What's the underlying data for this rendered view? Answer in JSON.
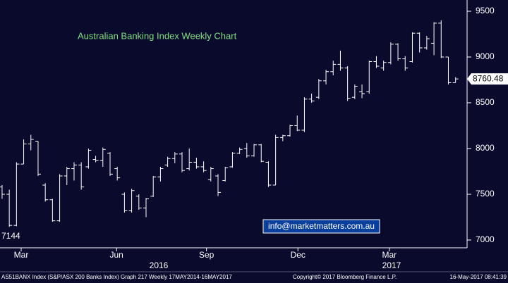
{
  "chart_data": {
    "type": "ohlc",
    "title": "Australian Banking Index Weekly Chart",
    "color": "#ffffff",
    "open": [
      7580,
      7500,
      7160,
      7830,
      8050,
      8080,
      7600,
      7440,
      7210,
      7700,
      7780,
      7820,
      7800,
      7880,
      7870,
      7950,
      7780,
      7500,
      7320,
      7480,
      7350,
      7480,
      7690,
      7820,
      7890,
      7940,
      7780,
      7850,
      7800,
      7660,
      7700,
      7650,
      7800,
      7950,
      8000,
      7920,
      8040,
      7850,
      7600,
      8120,
      8140,
      8250,
      8200,
      8540,
      8560,
      8740,
      8840,
      8920,
      8880,
      8560,
      8620,
      8620,
      8950,
      8880,
      8940,
      9140,
      8980,
      8950,
      9260,
      9100,
      9150,
      9370,
      9000,
      8720
    ],
    "high": [
      7600,
      7550,
      7850,
      8100,
      8150,
      8080,
      7620,
      7450,
      7720,
      7800,
      7850,
      7850,
      8000,
      7920,
      8010,
      7960,
      7800,
      7520,
      7560,
      7500,
      7460,
      7700,
      7800,
      7910,
      7960,
      7960,
      8000,
      7900,
      7860,
      7800,
      7720,
      7800,
      7960,
      8010,
      8060,
      8050,
      8050,
      7860,
      8150,
      8150,
      8260,
      8360,
      8560,
      8600,
      8760,
      8860,
      8960,
      9070,
      8900,
      8700,
      8700,
      8960,
      9010,
      8960,
      9160,
      9150,
      9010,
      9270,
      9270,
      9230,
      9380,
      9400,
      9000,
      8780
    ],
    "low": [
      7450,
      7144,
      7150,
      7830,
      7980,
      7700,
      7420,
      7200,
      7200,
      7600,
      7650,
      7550,
      7780,
      7850,
      7800,
      7700,
      7650,
      7300,
      7300,
      7330,
      7250,
      7470,
      7640,
      7800,
      7840,
      7740,
      7760,
      7780,
      7740,
      7640,
      7480,
      7640,
      7790,
      7940,
      7900,
      7910,
      7850,
      7580,
      7600,
      8080,
      8130,
      8190,
      8180,
      8500,
      8540,
      8700,
      8800,
      8850,
      8520,
      8540,
      8550,
      8600,
      8880,
      8850,
      8920,
      8960,
      8850,
      8940,
      9050,
      9080,
      9020,
      8990,
      8700,
      8720
    ],
    "close": [
      7500,
      7160,
      7830,
      8050,
      8100,
      7720,
      7440,
      7210,
      7700,
      7780,
      7820,
      7580,
      7980,
      7870,
      7990,
      7720,
      7680,
      7320,
      7540,
      7350,
      7450,
      7690,
      7780,
      7890,
      7940,
      7760,
      7850,
      7800,
      7760,
      7780,
      7520,
      7790,
      7950,
      7990,
      7920,
      8040,
      7860,
      7600,
      8120,
      8140,
      8250,
      8200,
      8540,
      8520,
      8740,
      8840,
      8920,
      8880,
      8550,
      8680,
      8600,
      8950,
      8900,
      8940,
      9140,
      8980,
      8880,
      9260,
      9100,
      9200,
      9370,
      9000,
      8720,
      8760.48
    ],
    "xlim": [
      -0.29,
      64.6
    ],
    "xticks": [
      {
        "value": 2.65,
        "label": "Mar"
      },
      {
        "value": 15.9,
        "label": "Jun"
      },
      {
        "value": 28.4,
        "label": "Sep"
      },
      {
        "value": 41.1,
        "label": "Dec"
      },
      {
        "value": 53.8,
        "label": "Mar"
      }
    ],
    "ylim": [
      6915,
      9623
    ],
    "yticks": [
      7000,
      7500,
      8000,
      8500,
      9000,
      9500
    ],
    "last_price_label": "8760.48",
    "low_label": "7144",
    "years": [
      "2016",
      "2017"
    ],
    "watermark": "info@marketmatters.com.au",
    "footer": {
      "left": "AS51BANX Index (S&P/ASX 200 Banks Index) Graph 217  Weekly 17MAY2014-16MAY2017",
      "center": "Copyright© 2017 Bloomberg Finance L.P.",
      "right": "16-May-2017 08:41:39"
    }
  }
}
